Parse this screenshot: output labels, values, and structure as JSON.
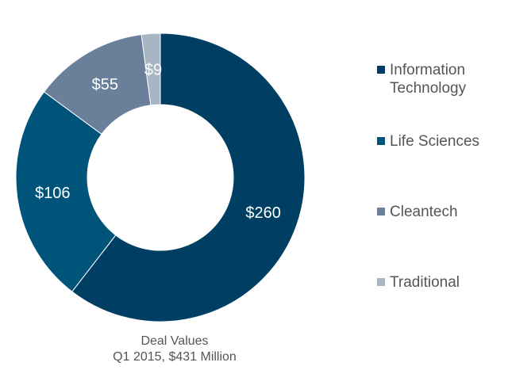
{
  "chart_data": {
    "type": "pie",
    "donut": true,
    "categories": [
      "Information Technology",
      "Life Sciences",
      "Cleantech",
      "Traditional"
    ],
    "values": [
      260,
      106,
      55,
      9
    ],
    "data_labels": [
      "$260",
      "$106",
      "$55",
      "$9"
    ],
    "colors": [
      "#003f63",
      "#00547a",
      "#6a7f9a",
      "#a8b5c2"
    ],
    "legend_position": "right",
    "caption": [
      "Deal Values",
      "Q1 2015, $431 Million"
    ]
  }
}
